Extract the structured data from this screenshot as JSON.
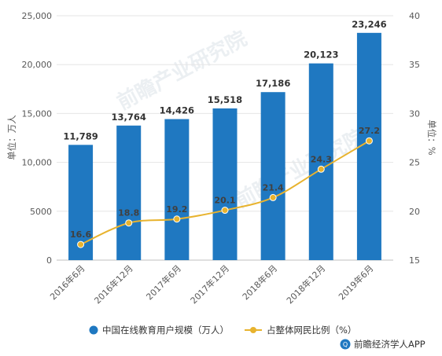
{
  "chart_data": {
    "type": "bar",
    "categories": [
      "2016年6月",
      "2016年12月",
      "2017年6月",
      "2017年12月",
      "2018年6月",
      "2018年12月",
      "2019年6月"
    ],
    "series": [
      {
        "name": "中国在线教育用户规模（万人）",
        "type": "bar",
        "axis": "left",
        "color": "#1f78c1",
        "values": [
          11789,
          13764,
          14426,
          15518,
          17186,
          20123,
          23246
        ],
        "labels": [
          "11,789",
          "13,764",
          "14,426",
          "15,518",
          "17,186",
          "20,123",
          "23,246"
        ]
      },
      {
        "name": "占整体网民比例（%）",
        "type": "line",
        "axis": "right",
        "color": "#e8b32e",
        "values": [
          16.6,
          18.8,
          19.2,
          20.1,
          21.4,
          24.3,
          27.2
        ],
        "labels": [
          "16.6",
          "18.8",
          "19.2",
          "20.1",
          "21.4",
          "24.3",
          "27.2"
        ]
      }
    ],
    "ylabel": "单位：万人",
    "ylim": [
      0,
      25000
    ],
    "yticks": [
      0,
      5000,
      10000,
      15000,
      20000,
      25000
    ],
    "ytick_labels": [
      "0",
      "5000",
      "10,000",
      "15,000",
      "20,000",
      "25,000"
    ],
    "y2label": "单位：%",
    "y2lim": [
      15,
      40
    ],
    "y2ticks": [
      15,
      20,
      25,
      30,
      35,
      40
    ],
    "y2tick_labels": [
      "15",
      "20",
      "25",
      "30",
      "35",
      "40"
    ],
    "grid": true,
    "legend": "bottom"
  },
  "credit": "前瞻经济学人APP",
  "watermark": "前瞻产业研究院"
}
